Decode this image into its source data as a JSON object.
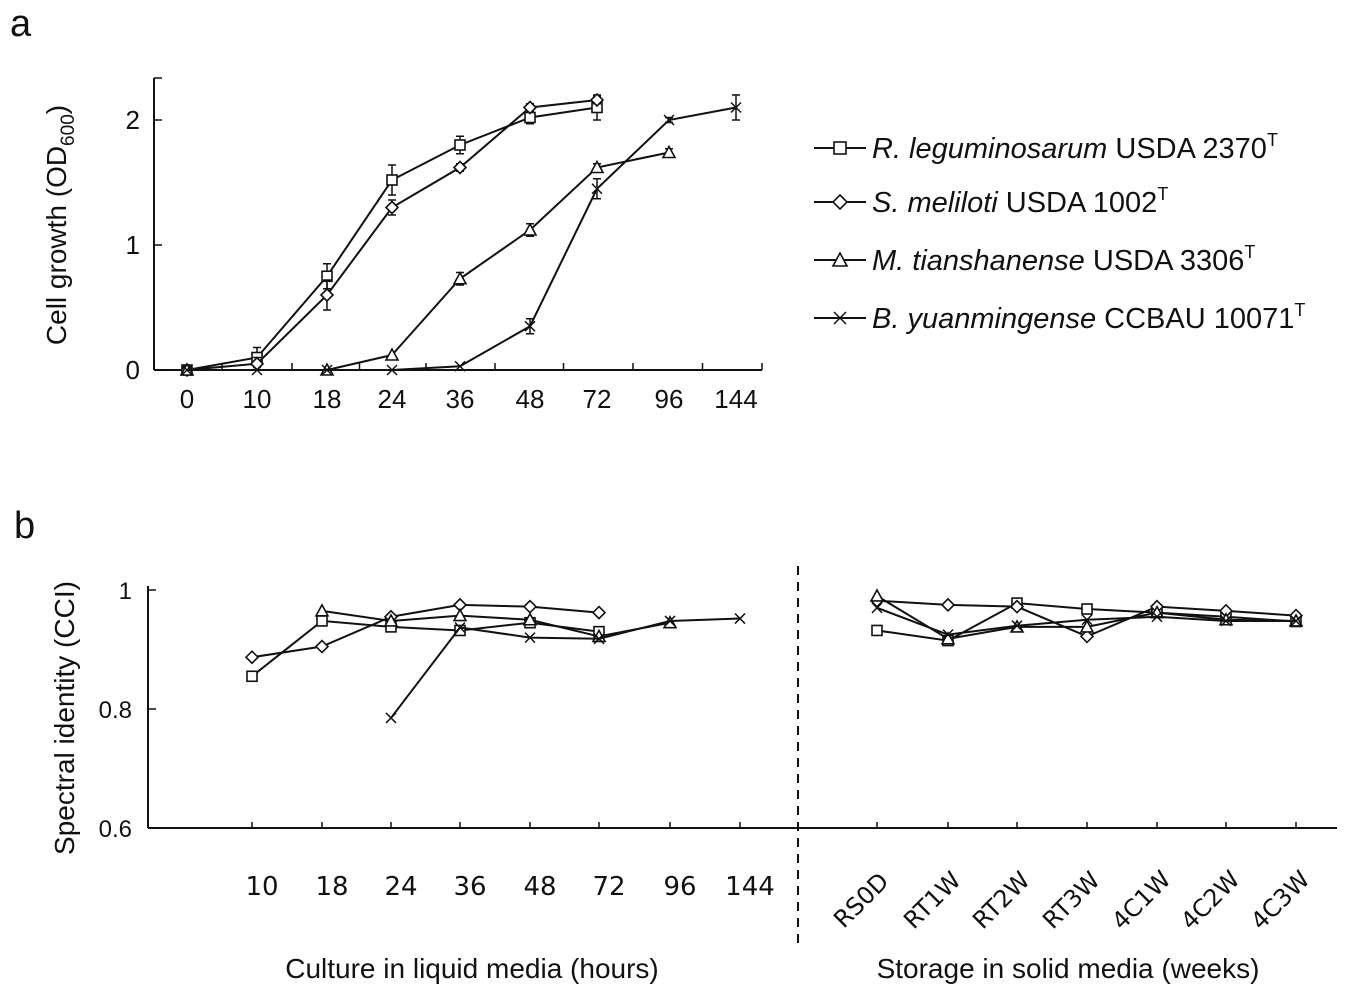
{
  "chart_data": [
    {
      "panel_label": "a",
      "type": "line",
      "ylabel": "Cell growth (OD",
      "ylabel_sub": "600",
      "ylabel_close": ")",
      "x": [
        "0",
        "10",
        "18",
        "24",
        "36",
        "48",
        "72",
        "96",
        "144"
      ],
      "ylim": [
        0,
        2.3
      ],
      "yticks": [
        "0",
        "1",
        "2"
      ],
      "yticks_values": [
        0,
        1,
        2
      ],
      "legend": "right",
      "series": [
        {
          "name": "R. leguminosarum",
          "strain": "USDA 2370",
          "sup": "T",
          "marker": "square",
          "values": [
            0,
            0.1,
            0.75,
            1.52,
            1.8,
            2.02,
            2.1,
            null,
            null
          ],
          "errors": [
            0,
            0.08,
            0.1,
            0.12,
            0.07,
            0.05,
            0.1,
            0,
            0
          ]
        },
        {
          "name": "S. meliloti",
          "strain": "USDA 1002",
          "sup": "T",
          "marker": "diamond",
          "values": [
            0,
            0.05,
            0.6,
            1.3,
            1.62,
            2.1,
            2.16,
            null,
            null
          ],
          "errors": [
            0,
            0.05,
            0.12,
            0.06,
            0.03,
            0.03,
            0.03,
            0,
            0
          ]
        },
        {
          "name": "M. tianshanense",
          "strain": "USDA 3306",
          "sup": "T",
          "marker": "triangle",
          "values": [
            0,
            null,
            0,
            0.12,
            0.73,
            1.12,
            1.62,
            1.74,
            null
          ],
          "errors": [
            0,
            0,
            0,
            0,
            0.05,
            0.05,
            0.03,
            0.03,
            0
          ]
        },
        {
          "name": "B. yuanmingense",
          "strain": "CCBAU 10071",
          "sup": "T",
          "marker": "x",
          "values": [
            0,
            0,
            0,
            0,
            0.03,
            0.35,
            1.45,
            2.0,
            2.1
          ],
          "errors": [
            0,
            0,
            0,
            0,
            0,
            0.06,
            0.08,
            0.02,
            0.1
          ]
        }
      ]
    },
    {
      "panel_label": "b",
      "type": "line",
      "ylabel": "Spectral identity (CCI)",
      "ylim": [
        0.6,
        1.0
      ],
      "yticks": [
        "0.6",
        "0.8",
        "1"
      ],
      "yticks_values": [
        0.6,
        0.8,
        1.0
      ],
      "x_liquid": [
        "10",
        "18",
        "24",
        "36",
        "48",
        "72",
        "96",
        "144"
      ],
      "x_solid": [
        "RS0D",
        "RT1W",
        "RT2W",
        "RT3W",
        "4C1W",
        "4C2W",
        "4C3W"
      ],
      "xlabel_liquid": "Culture  in liquid media (hours)",
      "xlabel_solid": "Storage in solid media (weeks)",
      "series": [
        {
          "marker": "square",
          "liquid": [
            0.855,
            0.948,
            0.938,
            0.932,
            0.945,
            0.93,
            null,
            null
          ],
          "solid": [
            0.932,
            0.915,
            0.978,
            0.968,
            0.962,
            0.955,
            0.947
          ]
        },
        {
          "marker": "diamond",
          "liquid": [
            0.887,
            0.905,
            0.955,
            0.975,
            0.972,
            0.962,
            null,
            null
          ],
          "solid": [
            0.982,
            0.975,
            0.972,
            0.922,
            0.972,
            0.965,
            0.957
          ]
        },
        {
          "marker": "triangle",
          "liquid": [
            null,
            0.965,
            0.948,
            0.957,
            0.95,
            0.922,
            0.945,
            null
          ],
          "solid": [
            0.99,
            0.918,
            0.938,
            0.938,
            0.962,
            0.95,
            0.948
          ]
        },
        {
          "marker": "x",
          "liquid": [
            null,
            null,
            0.785,
            0.937,
            0.92,
            0.918,
            0.948,
            0.952
          ],
          "solid": [
            0.97,
            0.925,
            0.94,
            0.95,
            0.955,
            0.948,
            0.948
          ]
        }
      ]
    }
  ]
}
